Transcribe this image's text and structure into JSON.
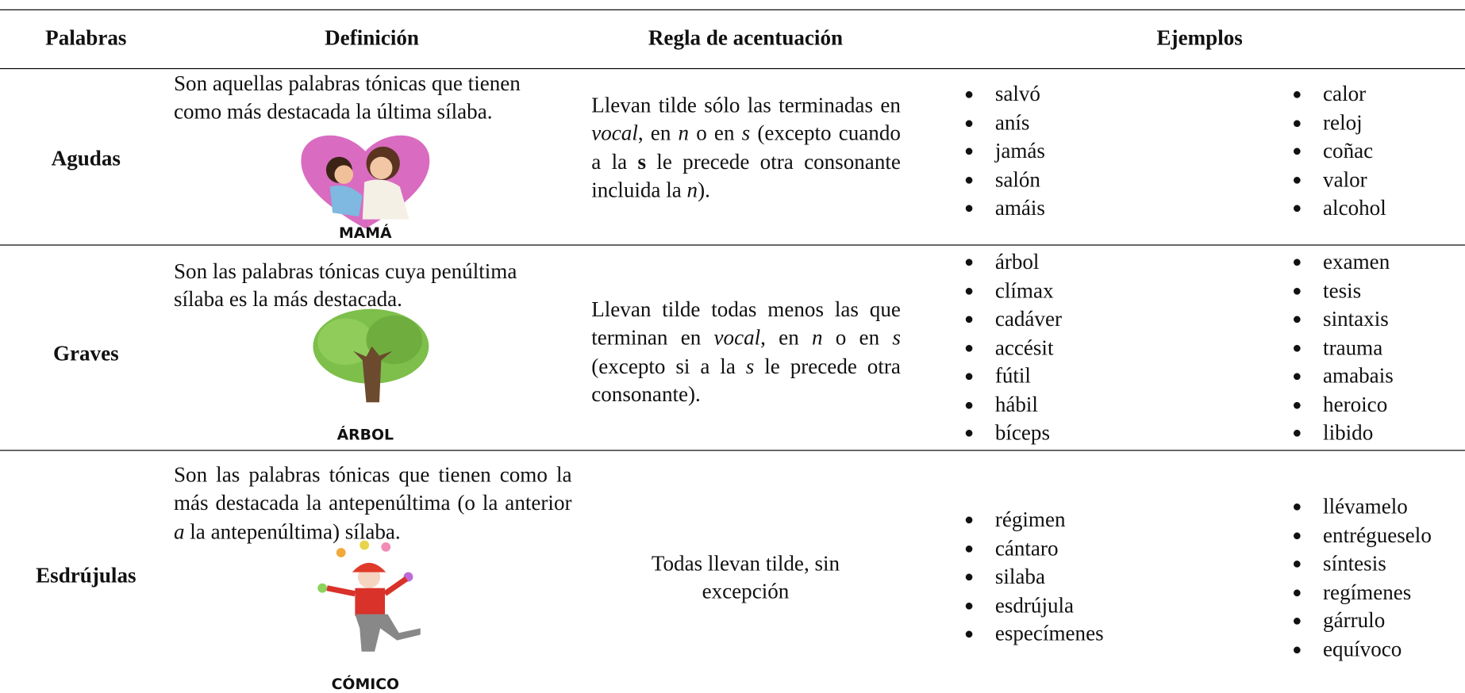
{
  "table": {
    "headers": [
      "Palabras",
      "Definición",
      "Regla de acentuación",
      "Ejemplos"
    ],
    "rows": [
      {
        "name": "Agudas",
        "definition": [
          {
            "t": "Son aquellas palabras tónicas que tienen como más destacada la última sílaba."
          }
        ],
        "image_label": "MAMÁ",
        "rule": [
          {
            "t": "Llevan tilde sólo las terminadas en "
          },
          {
            "i": "vocal"
          },
          {
            "t": ", en "
          },
          {
            "i": "n"
          },
          {
            "t": " o en "
          },
          {
            "i": "s"
          },
          {
            "t": " (excepto cuando a la "
          },
          {
            "b": "s"
          },
          {
            "t": " le precede otra consonante incluida la "
          },
          {
            "i": "n"
          },
          {
            "t": ")."
          }
        ],
        "examples": [
          [
            "salvó",
            "anís",
            "jamás",
            "salón",
            "amáis"
          ],
          [
            "calor",
            "reloj",
            "coñac",
            "valor",
            "alcohol"
          ]
        ]
      },
      {
        "name": "Graves",
        "definition": [
          {
            "t": "Son las palabras tónicas cuya penúltima sílaba es la más destacada."
          }
        ],
        "image_label": "ÁRBOL",
        "rule": [
          {
            "t": "Llevan tilde todas menos las que terminan en "
          },
          {
            "i": "vocal"
          },
          {
            "t": ", en "
          },
          {
            "i": "n"
          },
          {
            "t": " o en "
          },
          {
            "i": "s"
          },
          {
            "t": " (excepto si a la "
          },
          {
            "i": "s"
          },
          {
            "t": " le precede otra consonante)."
          }
        ],
        "examples": [
          [
            "árbol",
            "clímax",
            "cadáver",
            "accésit",
            "fútil",
            "hábil",
            "bíceps"
          ],
          [
            "examen",
            "tesis",
            "sintaxis",
            "trauma",
            "amabais",
            "heroico",
            "libido"
          ]
        ]
      },
      {
        "name": "Esdrújulas",
        "definition": [
          {
            "t": "Son las palabras tónicas que tienen como la más destacada la antepenúltima (o la anterior "
          },
          {
            "i": "a"
          },
          {
            "t": " la antepenúltima) sílaba."
          }
        ],
        "image_label": "CÓMICO",
        "rule": [
          {
            "t": "Todas llevan tilde, sin excepción"
          }
        ],
        "examples": [
          [
            "régimen",
            "cántaro",
            "silaba",
            "esdrújula",
            "especímenes"
          ],
          [
            "llévamelo",
            "entrégueselo",
            "síntesis",
            "regímenes",
            "gárrulo",
            "equívoco"
          ]
        ]
      }
    ]
  }
}
